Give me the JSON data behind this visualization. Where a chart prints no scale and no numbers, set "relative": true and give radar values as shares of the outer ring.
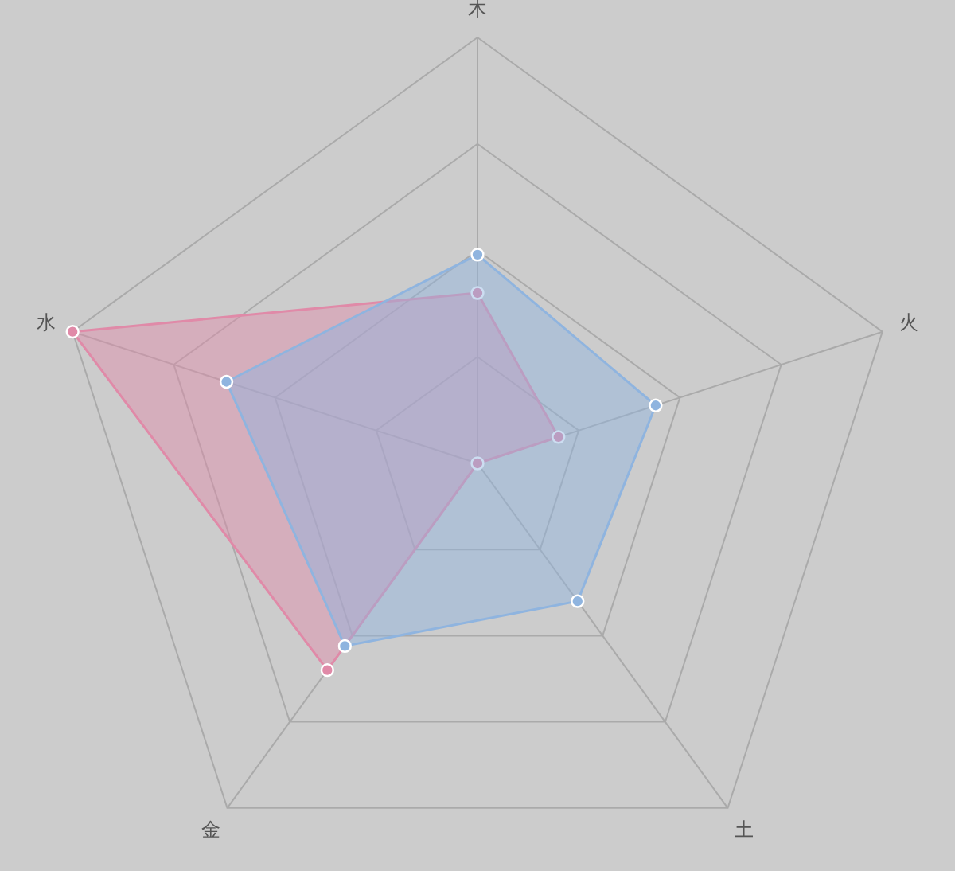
{
  "chart_data": {
    "type": "radar",
    "relative": true,
    "categories": [
      "木",
      "火",
      "土",
      "金",
      "水"
    ],
    "marker": "circle",
    "series": [
      {
        "color": "#e08aa8",
        "values": [
          0.4,
          0.2,
          0,
          0.6,
          1.0
        ]
      },
      {
        "color": "#8fb4df",
        "values": [
          0.49,
          0.44,
          0.4,
          0.53,
          0.62
        ]
      }
    ]
  }
}
